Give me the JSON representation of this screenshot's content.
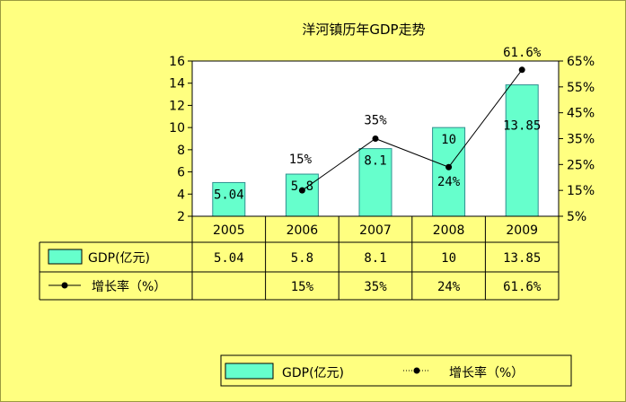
{
  "chart_data": {
    "type": "bar",
    "title": "洋河镇历年GDP走势",
    "categories": [
      "2005",
      "2006",
      "2007",
      "2008",
      "2009"
    ],
    "series": [
      {
        "name": "GDP(亿元)",
        "type": "bar",
        "axis": "left",
        "values": [
          5.04,
          5.8,
          8.1,
          10,
          13.85
        ],
        "labels": [
          "5.04",
          "5.8",
          "8.1",
          "10",
          "13.85"
        ],
        "color": "#66ffcc"
      },
      {
        "name": "增长率（%）",
        "type": "line",
        "axis": "right",
        "values": [
          null,
          15,
          35,
          24,
          61.6
        ],
        "labels": [
          "",
          "15%",
          "35%",
          "24%",
          "61.6%"
        ],
        "color": "#000000"
      }
    ],
    "y_left": {
      "range": [
        2,
        16
      ],
      "ticks": [
        "2",
        "4",
        "6",
        "8",
        "10",
        "12",
        "14",
        "16"
      ]
    },
    "y_right": {
      "range": [
        5,
        65
      ],
      "ticks": [
        "5%",
        "15%",
        "25%",
        "35%",
        "45%",
        "55%",
        "65%"
      ]
    },
    "grid": false,
    "data_table": true,
    "legend_position": "bottom-right",
    "background_color": "#ffff80",
    "plot_background_color": "#ffffff",
    "bar_color": "#66ffcc",
    "line_color": "#000000"
  }
}
